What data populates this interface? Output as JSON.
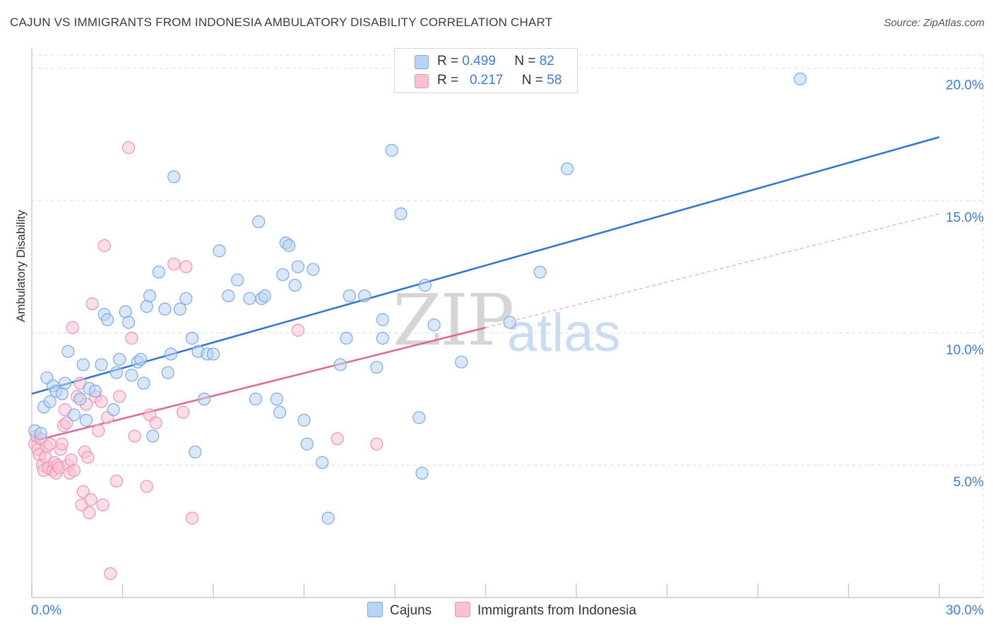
{
  "title": "CAJUN VS IMMIGRANTS FROM INDONESIA AMBULATORY DISABILITY CORRELATION CHART",
  "source": "Source: ZipAtlas.com",
  "watermark": {
    "zip": "ZIP",
    "atlas": "atlas"
  },
  "legend": {
    "rows": [
      {
        "r_label": "R =",
        "r_value": "0.499",
        "n_label": "N =",
        "n_value": "82"
      },
      {
        "r_label": "R =",
        "r_value": "0.217",
        "n_label": "N =",
        "n_value": "58"
      }
    ]
  },
  "colors": {
    "cajuns_fill": "#b9d3f3",
    "cajuns_stroke": "#7aaae6",
    "cajuns_line": "#2f74d0",
    "indonesia_fill": "#f7c3d3",
    "indonesia_stroke": "#ee93b1",
    "indonesia_line": "#e0688f",
    "grid": "#dddddd",
    "axis_text": "#3b7dd8"
  },
  "chart_data": {
    "type": "scatter",
    "title": "CAJUN VS IMMIGRANTS FROM INDONESIA AMBULATORY DISABILITY CORRELATION CHART",
    "xlabel": "",
    "ylabel": "Ambulatory Disability",
    "xlim": [
      0,
      30
    ],
    "ylim": [
      0,
      20.5
    ],
    "x_tick_labels": [
      "0.0%",
      "30.0%"
    ],
    "y_tick_labels": [
      "5.0%",
      "10.0%",
      "15.0%",
      "20.0%"
    ],
    "y_ticks": [
      5,
      10,
      15,
      20
    ],
    "grid": true,
    "legend_position": "bottom",
    "series": [
      {
        "name": "Cajuns",
        "trend": {
          "x": [
            0,
            30
          ],
          "y": [
            7.7,
            17.4
          ],
          "style": "solid"
        },
        "points": [
          [
            0.1,
            6.3
          ],
          [
            0.3,
            6.2
          ],
          [
            0.4,
            7.2
          ],
          [
            0.5,
            8.3
          ],
          [
            0.6,
            7.4
          ],
          [
            0.7,
            8.0
          ],
          [
            0.8,
            7.8
          ],
          [
            1.0,
            7.7
          ],
          [
            1.1,
            8.1
          ],
          [
            1.2,
            9.3
          ],
          [
            1.4,
            6.9
          ],
          [
            1.6,
            7.5
          ],
          [
            1.7,
            8.8
          ],
          [
            1.8,
            6.7
          ],
          [
            1.9,
            7.9
          ],
          [
            2.1,
            7.8
          ],
          [
            2.3,
            8.8
          ],
          [
            2.4,
            10.7
          ],
          [
            2.5,
            10.5
          ],
          [
            2.7,
            7.1
          ],
          [
            2.8,
            8.5
          ],
          [
            2.9,
            9.0
          ],
          [
            3.1,
            10.8
          ],
          [
            3.2,
            10.4
          ],
          [
            3.3,
            8.4
          ],
          [
            3.5,
            8.9
          ],
          [
            3.6,
            9.0
          ],
          [
            3.7,
            8.1
          ],
          [
            3.8,
            11.0
          ],
          [
            3.9,
            11.4
          ],
          [
            4.0,
            6.1
          ],
          [
            4.2,
            12.3
          ],
          [
            4.4,
            10.9
          ],
          [
            4.5,
            8.5
          ],
          [
            4.6,
            9.2
          ],
          [
            4.7,
            15.9
          ],
          [
            4.9,
            10.9
          ],
          [
            5.1,
            11.3
          ],
          [
            5.3,
            9.8
          ],
          [
            5.4,
            5.5
          ],
          [
            5.5,
            9.3
          ],
          [
            5.7,
            7.5
          ],
          [
            5.8,
            9.2
          ],
          [
            6.0,
            9.2
          ],
          [
            6.2,
            13.1
          ],
          [
            6.5,
            11.4
          ],
          [
            6.8,
            12.0
          ],
          [
            7.2,
            11.3
          ],
          [
            7.4,
            7.5
          ],
          [
            7.5,
            14.2
          ],
          [
            7.6,
            11.3
          ],
          [
            7.7,
            11.4
          ],
          [
            8.1,
            7.5
          ],
          [
            8.2,
            7.0
          ],
          [
            8.3,
            12.2
          ],
          [
            8.4,
            13.4
          ],
          [
            8.5,
            13.3
          ],
          [
            8.7,
            11.8
          ],
          [
            8.8,
            12.5
          ],
          [
            9.0,
            6.7
          ],
          [
            9.1,
            5.8
          ],
          [
            9.3,
            12.4
          ],
          [
            9.6,
            5.1
          ],
          [
            9.8,
            3.0
          ],
          [
            10.2,
            8.8
          ],
          [
            10.4,
            9.8
          ],
          [
            10.5,
            11.4
          ],
          [
            11.0,
            11.4
          ],
          [
            11.4,
            8.7
          ],
          [
            11.6,
            9.8
          ],
          [
            11.6,
            10.5
          ],
          [
            11.9,
            16.9
          ],
          [
            12.2,
            14.5
          ],
          [
            12.8,
            6.8
          ],
          [
            12.9,
            4.7
          ],
          [
            13.0,
            11.8
          ],
          [
            13.3,
            10.3
          ],
          [
            14.2,
            8.9
          ],
          [
            15.8,
            10.4
          ],
          [
            16.8,
            12.3
          ],
          [
            17.7,
            16.2
          ],
          [
            25.4,
            19.6
          ]
        ]
      },
      {
        "name": "Immigrants from Indonesia",
        "trend": {
          "x": [
            0,
            15
          ],
          "y": [
            5.9,
            10.2
          ],
          "style": "solid",
          "extended": {
            "x": [
              15,
              30
            ],
            "y": [
              10.2,
              14.5
            ],
            "style": "dashed"
          }
        },
        "points": [
          [
            0.1,
            5.8
          ],
          [
            0.15,
            6.1
          ],
          [
            0.2,
            5.6
          ],
          [
            0.25,
            5.4
          ],
          [
            0.3,
            6.0
          ],
          [
            0.35,
            5.0
          ],
          [
            0.4,
            4.8
          ],
          [
            0.45,
            5.3
          ],
          [
            0.5,
            5.7
          ],
          [
            0.55,
            4.9
          ],
          [
            0.6,
            5.8
          ],
          [
            0.7,
            4.8
          ],
          [
            0.75,
            5.1
          ],
          [
            0.8,
            4.7
          ],
          [
            0.85,
            5.0
          ],
          [
            0.9,
            4.9
          ],
          [
            0.95,
            5.6
          ],
          [
            1.0,
            5.8
          ],
          [
            1.05,
            6.5
          ],
          [
            1.1,
            7.1
          ],
          [
            1.15,
            6.6
          ],
          [
            1.2,
            5.0
          ],
          [
            1.25,
            4.7
          ],
          [
            1.3,
            5.2
          ],
          [
            1.35,
            10.2
          ],
          [
            1.4,
            4.8
          ],
          [
            1.5,
            7.6
          ],
          [
            1.6,
            8.1
          ],
          [
            1.65,
            3.5
          ],
          [
            1.7,
            4.0
          ],
          [
            1.75,
            5.5
          ],
          [
            1.8,
            7.3
          ],
          [
            1.85,
            5.3
          ],
          [
            1.9,
            3.2
          ],
          [
            1.95,
            3.7
          ],
          [
            2.0,
            11.1
          ],
          [
            2.1,
            7.6
          ],
          [
            2.2,
            6.3
          ],
          [
            2.3,
            7.4
          ],
          [
            2.35,
            3.5
          ],
          [
            2.4,
            13.3
          ],
          [
            2.5,
            6.8
          ],
          [
            2.6,
            0.9
          ],
          [
            2.8,
            4.4
          ],
          [
            2.9,
            7.6
          ],
          [
            3.2,
            17.0
          ],
          [
            3.3,
            9.8
          ],
          [
            3.4,
            6.1
          ],
          [
            3.8,
            4.2
          ],
          [
            3.9,
            6.9
          ],
          [
            4.1,
            6.6
          ],
          [
            4.7,
            12.6
          ],
          [
            5.0,
            7.0
          ],
          [
            5.1,
            12.5
          ],
          [
            5.3,
            3.0
          ],
          [
            8.8,
            10.1
          ],
          [
            10.1,
            6.0
          ],
          [
            11.4,
            5.8
          ]
        ]
      }
    ]
  },
  "bottom_legend": {
    "items": [
      {
        "label": "Cajuns"
      },
      {
        "label": "Immigrants from Indonesia"
      }
    ]
  }
}
